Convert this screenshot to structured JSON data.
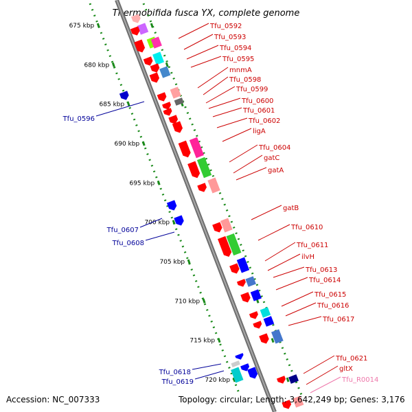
{
  "title": "Thermobifida fusca YX, complete genome",
  "footer": {
    "accession": "Accession: NC_007333",
    "summary": "Topology: circular; Length: 3,642,249 bp; Genes: 3,176"
  },
  "colors": {
    "backbone": "#8a8a8a",
    "tick": "#1a8a1a",
    "label_right": "#cc0000",
    "label_left": "#000099",
    "label_rna": "#ee77aa"
  },
  "scale": [
    {
      "label": "675 kbp",
      "kbp": 675
    },
    {
      "label": "680 kbp",
      "kbp": 680
    },
    {
      "label": "685 kbp",
      "kbp": 685
    },
    {
      "label": "690 kbp",
      "kbp": 690
    },
    {
      "label": "695 kbp",
      "kbp": 695
    },
    {
      "label": "700 kbp",
      "kbp": 700
    },
    {
      "label": "705 kbp",
      "kbp": 705
    },
    {
      "label": "710 kbp",
      "kbp": 710
    },
    {
      "label": "715 kbp",
      "kbp": 715
    },
    {
      "label": "720 kbp",
      "kbp": 720
    }
  ],
  "genes_right": [
    {
      "name": "Tfu_0592",
      "color": "#cc0000"
    },
    {
      "name": "Tfu_0593",
      "color": "#cc0000"
    },
    {
      "name": "Tfu_0594",
      "color": "#cc0000"
    },
    {
      "name": "Tfu_0595",
      "color": "#cc0000"
    },
    {
      "name": "mnmA",
      "color": "#cc0000"
    },
    {
      "name": "Tfu_0598",
      "color": "#cc0000"
    },
    {
      "name": "Tfu_0599",
      "color": "#cc0000"
    },
    {
      "name": "Tfu_0600",
      "color": "#cc0000"
    },
    {
      "name": "Tfu_0601",
      "color": "#cc0000"
    },
    {
      "name": "Tfu_0602",
      "color": "#cc0000"
    },
    {
      "name": "ligA",
      "color": "#cc0000"
    },
    {
      "name": "Tfu_0604",
      "color": "#cc0000"
    },
    {
      "name": "gatC",
      "color": "#cc0000"
    },
    {
      "name": "gatA",
      "color": "#cc0000"
    },
    {
      "name": "gatB",
      "color": "#cc0000"
    },
    {
      "name": "Tfu_0610",
      "color": "#cc0000"
    },
    {
      "name": "Tfu_0611",
      "color": "#cc0000"
    },
    {
      "name": "ilvH",
      "color": "#cc0000"
    },
    {
      "name": "Tfu_0613",
      "color": "#cc0000"
    },
    {
      "name": "Tfu_0614",
      "color": "#cc0000"
    },
    {
      "name": "Tfu_0615",
      "color": "#cc0000"
    },
    {
      "name": "Tfu_0616",
      "color": "#cc0000"
    },
    {
      "name": "Tfu_0617",
      "color": "#cc0000"
    },
    {
      "name": "Tfu_0621",
      "color": "#cc0000"
    },
    {
      "name": "gltX",
      "color": "#cc0000"
    },
    {
      "name": "Tfu_R0014",
      "color": "#ee77aa"
    }
  ],
  "genes_left": [
    {
      "name": "Tfu_0596",
      "color": "#000099"
    },
    {
      "name": "Tfu_0607",
      "color": "#000099"
    },
    {
      "name": "Tfu_0608",
      "color": "#000099"
    },
    {
      "name": "Tfu_0618",
      "color": "#000099"
    },
    {
      "name": "Tfu_0619",
      "color": "#000099"
    }
  ]
}
